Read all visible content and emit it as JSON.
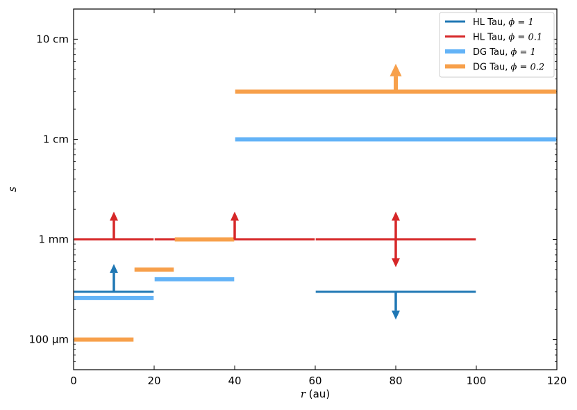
{
  "chart_data": {
    "type": "line",
    "xlabel_symbol": "r",
    "xlabel_unit": "(au)",
    "ylabel": "s",
    "xlim": [
      0,
      120
    ],
    "ylim_cm": [
      0.005,
      20
    ],
    "y_scale": "log",
    "x_ticks": [
      0,
      20,
      40,
      60,
      80,
      100,
      120
    ],
    "y_ticks": [
      {
        "value_cm": 0.01,
        "label": "100 µm"
      },
      {
        "value_cm": 0.1,
        "label": "1 mm"
      },
      {
        "value_cm": 1,
        "label": "1 cm"
      },
      {
        "value_cm": 10,
        "label": "10 cm"
      }
    ],
    "legend_position": "top-right",
    "series": [
      {
        "name": "HL Tau, ϕ = 1",
        "legend_prefix": "HL Tau, ",
        "legend_math": "ϕ = 1",
        "color": "#1f77b4",
        "width": "thin",
        "segments": [
          {
            "x0": 0,
            "x1": 20,
            "y_cm": 0.03
          },
          {
            "x0": 60,
            "x1": 100,
            "y_cm": 0.03
          }
        ],
        "arrows": [
          {
            "x": 10,
            "y_cm": 0.03,
            "direction": "up"
          },
          {
            "x": 80,
            "y_cm": 0.03,
            "direction": "down"
          }
        ]
      },
      {
        "name": "HL Tau, ϕ = 0.1",
        "legend_prefix": "HL Tau, ",
        "legend_math": "ϕ = 0.1",
        "color": "#d62728",
        "width": "thin",
        "segments": [
          {
            "x0": 0,
            "x1": 20,
            "y_cm": 0.1
          },
          {
            "x0": 20,
            "x1": 60,
            "y_cm": 0.1
          },
          {
            "x0": 60,
            "x1": 100,
            "y_cm": 0.1
          }
        ],
        "arrows": [
          {
            "x": 10,
            "y_cm": 0.1,
            "direction": "up"
          },
          {
            "x": 40,
            "y_cm": 0.1,
            "direction": "up"
          },
          {
            "x": 80,
            "y_cm": 0.1,
            "direction": "up"
          },
          {
            "x": 80,
            "y_cm": 0.1,
            "direction": "down"
          }
        ]
      },
      {
        "name": "DG Tau, ϕ = 1",
        "legend_prefix": "DG Tau, ",
        "legend_math": "ϕ = 1",
        "color": "#63b3f7",
        "width": "thick",
        "segments": [
          {
            "x0": 0,
            "x1": 20,
            "y_cm": 0.026
          },
          {
            "x0": 20,
            "x1": 40,
            "y_cm": 0.04
          },
          {
            "x0": 40,
            "x1": 120,
            "y_cm": 1
          }
        ],
        "arrows": []
      },
      {
        "name": "DG Tau, ϕ = 0.2",
        "legend_prefix": "DG Tau, ",
        "legend_math": "ϕ = 0.2",
        "color": "#f7a04b",
        "width": "thick",
        "segments": [
          {
            "x0": 0,
            "x1": 15,
            "y_cm": 0.01
          },
          {
            "x0": 15,
            "x1": 25,
            "y_cm": 0.05
          },
          {
            "x0": 25,
            "x1": 40,
            "y_cm": 0.1
          },
          {
            "x0": 40,
            "x1": 120,
            "y_cm": 3
          }
        ],
        "arrows": [
          {
            "x": 80,
            "y_cm": 3,
            "direction": "up"
          }
        ]
      }
    ]
  }
}
